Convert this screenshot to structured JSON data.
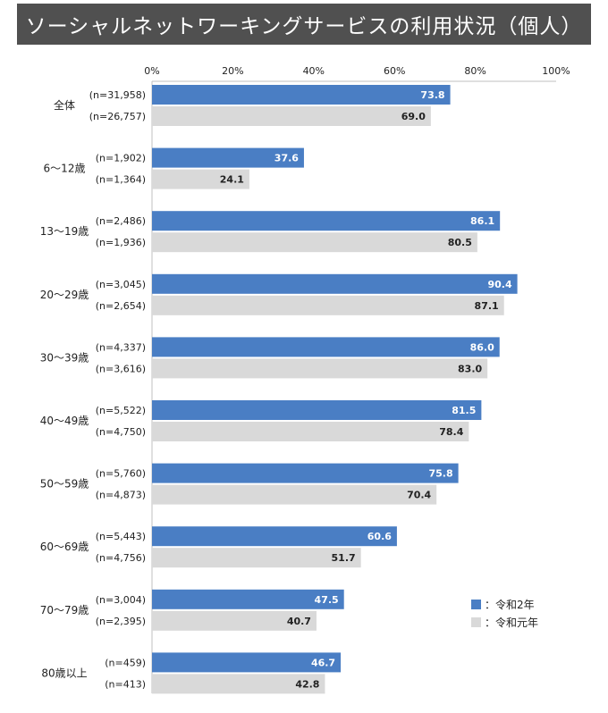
{
  "title": "ソーシャルネットワーキングサービスの利用状況（個人）",
  "colors": {
    "series1": "#4a7ec4",
    "series2": "#d9d9d9"
  },
  "legend": {
    "series1": "：令和2年",
    "series2": "：令和元年"
  },
  "chart_data": {
    "type": "bar",
    "orientation": "horizontal",
    "title": "ソーシャルネットワーキングサービスの利用状況（個人）",
    "xlim": [
      0,
      100
    ],
    "xticks": [
      "0%",
      "20%",
      "40%",
      "60%",
      "80%",
      "100%"
    ],
    "legend_position": "right",
    "categories": [
      "全体",
      "6～12歳",
      "13～19歳",
      "20～29歳",
      "30～39歳",
      "40～49歳",
      "50～59歳",
      "60～69歳",
      "70～79歳",
      "80歳以上"
    ],
    "series": [
      {
        "name": "令和2年",
        "values": [
          73.8,
          37.6,
          86.1,
          90.4,
          86.0,
          81.5,
          75.8,
          60.6,
          47.5,
          46.7
        ],
        "labels": [
          "73.8",
          "37.6",
          "86.1",
          "90.4",
          "86.0",
          "81.5",
          "75.8",
          "60.6",
          "47.5",
          "46.7"
        ],
        "n": [
          "(n=31,958)",
          "(n=1,902)",
          "(n=2,486)",
          "(n=3,045)",
          "(n=4,337)",
          "(n=5,522)",
          "(n=5,760)",
          "(n=5,443)",
          "(n=3,004)",
          "(n=459)"
        ]
      },
      {
        "name": "令和元年",
        "values": [
          69.0,
          24.1,
          80.5,
          87.1,
          83.0,
          78.4,
          70.4,
          51.7,
          40.7,
          42.8
        ],
        "labels": [
          "69.0",
          "24.1",
          "80.5",
          "87.1",
          "83.0",
          "78.4",
          "70.4",
          "51.7",
          "40.7",
          "42.8"
        ],
        "n": [
          "(n=26,757)",
          "(n=1,364)",
          "(n=1,936)",
          "(n=2,654)",
          "(n=3,616)",
          "(n=4,750)",
          "(n=4,873)",
          "(n=4,756)",
          "(n=2,395)",
          "(n=413)"
        ]
      }
    ]
  }
}
